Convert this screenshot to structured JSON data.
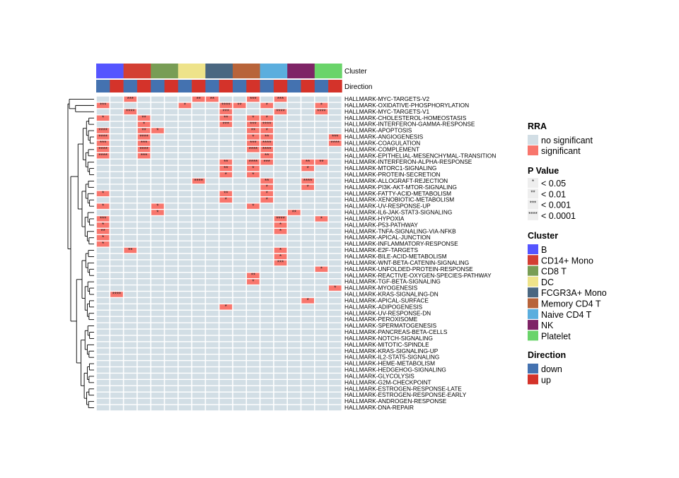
{
  "chart_data": {
    "type": "heatmap",
    "column_annotations": {
      "cluster_label": "Cluster",
      "direction_label": "Direction"
    },
    "clusters": [
      "B",
      "CD14+ Mono",
      "CD8 T",
      "DC",
      "FCGR3A+ Mono",
      "Memory CD4 T",
      "Naive CD4 T",
      "NK",
      "Platelet"
    ],
    "directions": [
      "down",
      "up"
    ],
    "rows": [
      "HALLMARK-MYC-TARGETS-V2",
      "HALLMARK-OXIDATIVE-PHOSPHORYLATION",
      "HALLMARK-MYC-TARGETS-V1",
      "HALLMARK-CHOLESTEROL-HOMEOSTASIS",
      "HALLMARK-INTERFERON-GAMMA-RESPONSE",
      "HALLMARK-APOPTOSIS",
      "HALLMARK-ANGIOGENESIS",
      "HALLMARK-COAGULATION",
      "HALLMARK-COMPLEMENT",
      "HALLMARK-EPITHELIAL-MESENCHYMAL-TRANSITION",
      "HALLMARK-INTERFERON-ALPHA-RESPONSE",
      "HALLMARK-MTORC1-SIGNALING",
      "HALLMARK-PROTEIN-SECRETION",
      "HALLMARK-ALLOGRAFT-REJECTION",
      "HALLMARK-PI3K-AKT-MTOR-SIGNALING",
      "HALLMARK-FATTY-ACID-METABOLISM",
      "HALLMARK-XENOBIOTIC-METABOLISM",
      "HALLMARK-UV-RESPONSE-UP",
      "HALLMARK-IL6-JAK-STAT3-SIGNALING",
      "HALLMARK-HYPOXIA",
      "HALLMARK-P53-PATHWAY",
      "HALLMARK-TNFA-SIGNALING-VIA-NFKB",
      "HALLMARK-APICAL-JUNCTION",
      "HALLMARK-INFLAMMATORY-RESPONSE",
      "HALLMARK-E2F-TARGETS",
      "HALLMARK-BILE-ACID-METABOLISM",
      "HALLMARK-WNT-BETA-CATENIN-SIGNALING",
      "HALLMARK-UNFOLDED-PROTEIN-RESPONSE",
      "HALLMARK-REACTIVE-OXYGEN-SPECIES-PATHWAY",
      "HALLMARK-TGF-BETA-SIGNALING",
      "HALLMARK-MYOGENESIS",
      "HALLMARK-KRAS-SIGNALING-DN",
      "HALLMARK-APICAL-SURFACE",
      "HALLMARK-ADIPOGENESIS",
      "HALLMARK-UV-RESPONSE-DN",
      "HALLMARK-PEROXISOME",
      "HALLMARK-SPERMATOGENESIS",
      "HALLMARK-PANCREAS-BETA-CELLS",
      "HALLMARK-NOTCH-SIGNALING",
      "HALLMARK-MITOTIC-SPINDLE",
      "HALLMARK-KRAS-SIGNALING-UP",
      "HALLMARK-IL2-STAT5-SIGNALING",
      "HALLMARK-HEME-METABOLISM",
      "HALLMARK-HEDGEHOG-SIGNALING",
      "HALLMARK-GLYCOLYSIS",
      "HALLMARK-G2M-CHECKPOINT",
      "HALLMARK-ESTROGEN-RESPONSE-LATE",
      "HALLMARK-ESTROGEN-RESPONSE-EARLY",
      "HALLMARK-ANDROGEN-RESPONSE",
      "HALLMARK-DNA-REPAIR"
    ],
    "significant_cells": [
      {
        "row": 0,
        "cluster": "CD14+ Mono",
        "direction": "down",
        "p": "***"
      },
      {
        "row": 0,
        "cluster": "DC",
        "direction": "up",
        "p": "**"
      },
      {
        "row": 0,
        "cluster": "FCGR3A+ Mono",
        "direction": "down",
        "p": "**"
      },
      {
        "row": 0,
        "cluster": "Memory CD4 T",
        "direction": "up",
        "p": "***"
      },
      {
        "row": 0,
        "cluster": "Naive CD4 T",
        "direction": "up",
        "p": "***"
      },
      {
        "row": 1,
        "cluster": "B",
        "direction": "down",
        "p": "***"
      },
      {
        "row": 1,
        "cluster": "DC",
        "direction": "down",
        "p": "*"
      },
      {
        "row": 1,
        "cluster": "FCGR3A+ Mono",
        "direction": "up",
        "p": "****"
      },
      {
        "row": 1,
        "cluster": "Memory CD4 T",
        "direction": "down",
        "p": "**"
      },
      {
        "row": 1,
        "cluster": "Naive CD4 T",
        "direction": "down",
        "p": "*"
      },
      {
        "row": 1,
        "cluster": "Platelet",
        "direction": "down",
        "p": "*"
      },
      {
        "row": 2,
        "cluster": "CD14+ Mono",
        "direction": "down",
        "p": "****"
      },
      {
        "row": 2,
        "cluster": "FCGR3A+ Mono",
        "direction": "up",
        "p": "***"
      },
      {
        "row": 2,
        "cluster": "Naive CD4 T",
        "direction": "up",
        "p": "****"
      },
      {
        "row": 2,
        "cluster": "Platelet",
        "direction": "down",
        "p": "****"
      },
      {
        "row": 3,
        "cluster": "B",
        "direction": "down",
        "p": "*"
      },
      {
        "row": 3,
        "cluster": "CD14+ Mono",
        "direction": "up",
        "p": "**"
      },
      {
        "row": 3,
        "cluster": "FCGR3A+ Mono",
        "direction": "up",
        "p": "**"
      },
      {
        "row": 3,
        "cluster": "Memory CD4 T",
        "direction": "up",
        "p": "*"
      },
      {
        "row": 3,
        "cluster": "Naive CD4 T",
        "direction": "down",
        "p": "*"
      },
      {
        "row": 4,
        "cluster": "CD14+ Mono",
        "direction": "up",
        "p": "*"
      },
      {
        "row": 4,
        "cluster": "FCGR3A+ Mono",
        "direction": "up",
        "p": "***"
      },
      {
        "row": 4,
        "cluster": "Memory CD4 T",
        "direction": "up",
        "p": "***"
      },
      {
        "row": 4,
        "cluster": "Naive CD4 T",
        "direction": "down",
        "p": "****"
      },
      {
        "row": 5,
        "cluster": "B",
        "direction": "down",
        "p": "****"
      },
      {
        "row": 5,
        "cluster": "CD14+ Mono",
        "direction": "up",
        "p": "**"
      },
      {
        "row": 5,
        "cluster": "CD8 T",
        "direction": "down",
        "p": "*"
      },
      {
        "row": 5,
        "cluster": "Memory CD4 T",
        "direction": "up",
        "p": "**"
      },
      {
        "row": 5,
        "cluster": "Naive CD4 T",
        "direction": "down",
        "p": "*"
      },
      {
        "row": 6,
        "cluster": "B",
        "direction": "down",
        "p": "****"
      },
      {
        "row": 6,
        "cluster": "CD14+ Mono",
        "direction": "up",
        "p": "****"
      },
      {
        "row": 6,
        "cluster": "Memory CD4 T",
        "direction": "up",
        "p": "*"
      },
      {
        "row": 6,
        "cluster": "Naive CD4 T",
        "direction": "down",
        "p": "**"
      },
      {
        "row": 6,
        "cluster": "Platelet",
        "direction": "up",
        "p": "***"
      },
      {
        "row": 7,
        "cluster": "B",
        "direction": "down",
        "p": "***"
      },
      {
        "row": 7,
        "cluster": "CD14+ Mono",
        "direction": "up",
        "p": "***"
      },
      {
        "row": 7,
        "cluster": "Memory CD4 T",
        "direction": "up",
        "p": "***"
      },
      {
        "row": 7,
        "cluster": "Naive CD4 T",
        "direction": "down",
        "p": "****"
      },
      {
        "row": 7,
        "cluster": "Platelet",
        "direction": "up",
        "p": "****"
      },
      {
        "row": 8,
        "cluster": "B",
        "direction": "down",
        "p": "****"
      },
      {
        "row": 8,
        "cluster": "CD14+ Mono",
        "direction": "up",
        "p": "****"
      },
      {
        "row": 8,
        "cluster": "Memory CD4 T",
        "direction": "up",
        "p": "****"
      },
      {
        "row": 8,
        "cluster": "Naive CD4 T",
        "direction": "down",
        "p": "****"
      },
      {
        "row": 9,
        "cluster": "B",
        "direction": "down",
        "p": "****"
      },
      {
        "row": 9,
        "cluster": "CD14+ Mono",
        "direction": "up",
        "p": "***"
      },
      {
        "row": 9,
        "cluster": "Naive CD4 T",
        "direction": "down",
        "p": "**"
      },
      {
        "row": 10,
        "cluster": "FCGR3A+ Mono",
        "direction": "up",
        "p": "**"
      },
      {
        "row": 10,
        "cluster": "Memory CD4 T",
        "direction": "up",
        "p": "****"
      },
      {
        "row": 10,
        "cluster": "Naive CD4 T",
        "direction": "down",
        "p": "***"
      },
      {
        "row": 10,
        "cluster": "NK",
        "direction": "up",
        "p": "**"
      },
      {
        "row": 10,
        "cluster": "Platelet",
        "direction": "down",
        "p": "**"
      },
      {
        "row": 11,
        "cluster": "FCGR3A+ Mono",
        "direction": "up",
        "p": "**"
      },
      {
        "row": 11,
        "cluster": "Memory CD4 T",
        "direction": "up",
        "p": "*"
      },
      {
        "row": 11,
        "cluster": "NK",
        "direction": "up",
        "p": "*"
      },
      {
        "row": 12,
        "cluster": "FCGR3A+ Mono",
        "direction": "up",
        "p": "*"
      },
      {
        "row": 12,
        "cluster": "Memory CD4 T",
        "direction": "up",
        "p": "*"
      },
      {
        "row": 13,
        "cluster": "DC",
        "direction": "up",
        "p": "****"
      },
      {
        "row": 13,
        "cluster": "Naive CD4 T",
        "direction": "down",
        "p": "**"
      },
      {
        "row": 13,
        "cluster": "NK",
        "direction": "up",
        "p": "****"
      },
      {
        "row": 14,
        "cluster": "Naive CD4 T",
        "direction": "down",
        "p": "*"
      },
      {
        "row": 14,
        "cluster": "NK",
        "direction": "up",
        "p": "*"
      },
      {
        "row": 15,
        "cluster": "B",
        "direction": "down",
        "p": "*"
      },
      {
        "row": 15,
        "cluster": "FCGR3A+ Mono",
        "direction": "up",
        "p": "**"
      },
      {
        "row": 15,
        "cluster": "Naive CD4 T",
        "direction": "down",
        "p": "*"
      },
      {
        "row": 16,
        "cluster": "FCGR3A+ Mono",
        "direction": "up",
        "p": "*"
      },
      {
        "row": 16,
        "cluster": "Naive CD4 T",
        "direction": "down",
        "p": "*"
      },
      {
        "row": 17,
        "cluster": "B",
        "direction": "down",
        "p": "*"
      },
      {
        "row": 17,
        "cluster": "CD8 T",
        "direction": "down",
        "p": "*"
      },
      {
        "row": 17,
        "cluster": "Memory CD4 T",
        "direction": "up",
        "p": "*"
      },
      {
        "row": 18,
        "cluster": "CD8 T",
        "direction": "down",
        "p": "*"
      },
      {
        "row": 18,
        "cluster": "NK",
        "direction": "down",
        "p": "**"
      },
      {
        "row": 19,
        "cluster": "B",
        "direction": "down",
        "p": "***"
      },
      {
        "row": 19,
        "cluster": "Naive CD4 T",
        "direction": "up",
        "p": "****"
      },
      {
        "row": 19,
        "cluster": "Platelet",
        "direction": "down",
        "p": "*"
      },
      {
        "row": 20,
        "cluster": "B",
        "direction": "down",
        "p": "*"
      },
      {
        "row": 20,
        "cluster": "Naive CD4 T",
        "direction": "up",
        "p": "*"
      },
      {
        "row": 21,
        "cluster": "B",
        "direction": "down",
        "p": "**"
      },
      {
        "row": 21,
        "cluster": "Naive CD4 T",
        "direction": "up",
        "p": "*"
      },
      {
        "row": 22,
        "cluster": "B",
        "direction": "down",
        "p": "*"
      },
      {
        "row": 23,
        "cluster": "B",
        "direction": "down",
        "p": "*"
      },
      {
        "row": 24,
        "cluster": "CD14+ Mono",
        "direction": "down",
        "p": "**"
      },
      {
        "row": 24,
        "cluster": "Naive CD4 T",
        "direction": "up",
        "p": "*"
      },
      {
        "row": 25,
        "cluster": "Naive CD4 T",
        "direction": "up",
        "p": "*"
      },
      {
        "row": 26,
        "cluster": "Naive CD4 T",
        "direction": "up",
        "p": "***"
      },
      {
        "row": 27,
        "cluster": "Platelet",
        "direction": "down",
        "p": "*"
      },
      {
        "row": 28,
        "cluster": "Memory CD4 T",
        "direction": "up",
        "p": "**"
      },
      {
        "row": 29,
        "cluster": "Memory CD4 T",
        "direction": "up",
        "p": "*"
      },
      {
        "row": 30,
        "cluster": "Platelet",
        "direction": "up",
        "p": "*"
      },
      {
        "row": 31,
        "cluster": "B",
        "direction": "up",
        "p": "****"
      },
      {
        "row": 32,
        "cluster": "NK",
        "direction": "up",
        "p": "*"
      },
      {
        "row": 33,
        "cluster": "FCGR3A+ Mono",
        "direction": "up",
        "p": "*"
      }
    ],
    "colors": {
      "no_significant": "#D2DEE5",
      "significant": "#F8766D",
      "clusters": [
        "#5555FF",
        "#D33F33",
        "#789D55",
        "#EEE38A",
        "#4A6781",
        "#B8643A",
        "#5BAEDE",
        "#7E2466",
        "#6AD46A"
      ],
      "directions": [
        "#4472B0",
        "#D4332A"
      ]
    },
    "legend": {
      "rra": {
        "title": "RRA",
        "items": [
          "no significant",
          "significant"
        ]
      },
      "pvalue": {
        "title": "P Value",
        "items": [
          {
            "stars": "*",
            "label": "< 0.05"
          },
          {
            "stars": "**",
            "label": "< 0.01"
          },
          {
            "stars": "***",
            "label": "< 0.001"
          },
          {
            "stars": "****",
            "label": "< 0.0001"
          }
        ]
      },
      "cluster": {
        "title": "Cluster"
      },
      "direction": {
        "title": "Direction"
      },
      "placement": "right"
    },
    "row_dendrogram": true
  }
}
